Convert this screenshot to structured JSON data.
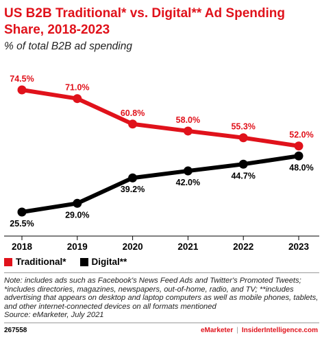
{
  "header": {
    "title": "US B2B Traditional* vs. Digital** Ad Spending Share, 2018-2023",
    "subtitle": "% of total B2B ad spending"
  },
  "colors": {
    "traditional": "#e0121b",
    "digital": "#000000",
    "brand": "#e0121b"
  },
  "chart_data": {
    "type": "line",
    "title": "US B2B Traditional* vs. Digital** Ad Spending Share, 2018-2023",
    "subtitle": "% of total B2B ad spending",
    "x": [
      "2018",
      "2019",
      "2020",
      "2021",
      "2022",
      "2023"
    ],
    "ylim": [
      20,
      80
    ],
    "grid": false,
    "legend": "bottom-left",
    "series": [
      {
        "name": "Traditional*",
        "color": "#e0121b",
        "values": [
          74.5,
          71.0,
          60.8,
          58.0,
          55.3,
          52.0
        ],
        "labels": [
          "74.5%",
          "71.0%",
          "60.8%",
          "58.0%",
          "55.3%",
          "52.0%"
        ]
      },
      {
        "name": "Digital**",
        "color": "#000000",
        "values": [
          25.5,
          29.0,
          39.2,
          42.0,
          44.7,
          48.0
        ],
        "labels": [
          "25.5%",
          "29.0%",
          "39.2%",
          "42.0%",
          "44.7%",
          "48.0%"
        ]
      }
    ]
  },
  "legend": {
    "traditional": "Traditional*",
    "digital": "Digital**"
  },
  "notes": {
    "text": "Note: includes ads such as Facebook's News Feed Ads and Twitter's Promoted Tweets; *includes directories, magazines, newspapers, out-of-home, radio, and TV; **includes advertising that appears on desktop and laptop computers as well as mobile phones, tablets, and other internet-connected devices on all formats mentioned",
    "source": "Source: eMarketer, July 2021"
  },
  "footer": {
    "chart_id": "267558",
    "brand_left": "eMarketer",
    "divider": "|",
    "brand_right": "InsiderIntelligence.com"
  }
}
